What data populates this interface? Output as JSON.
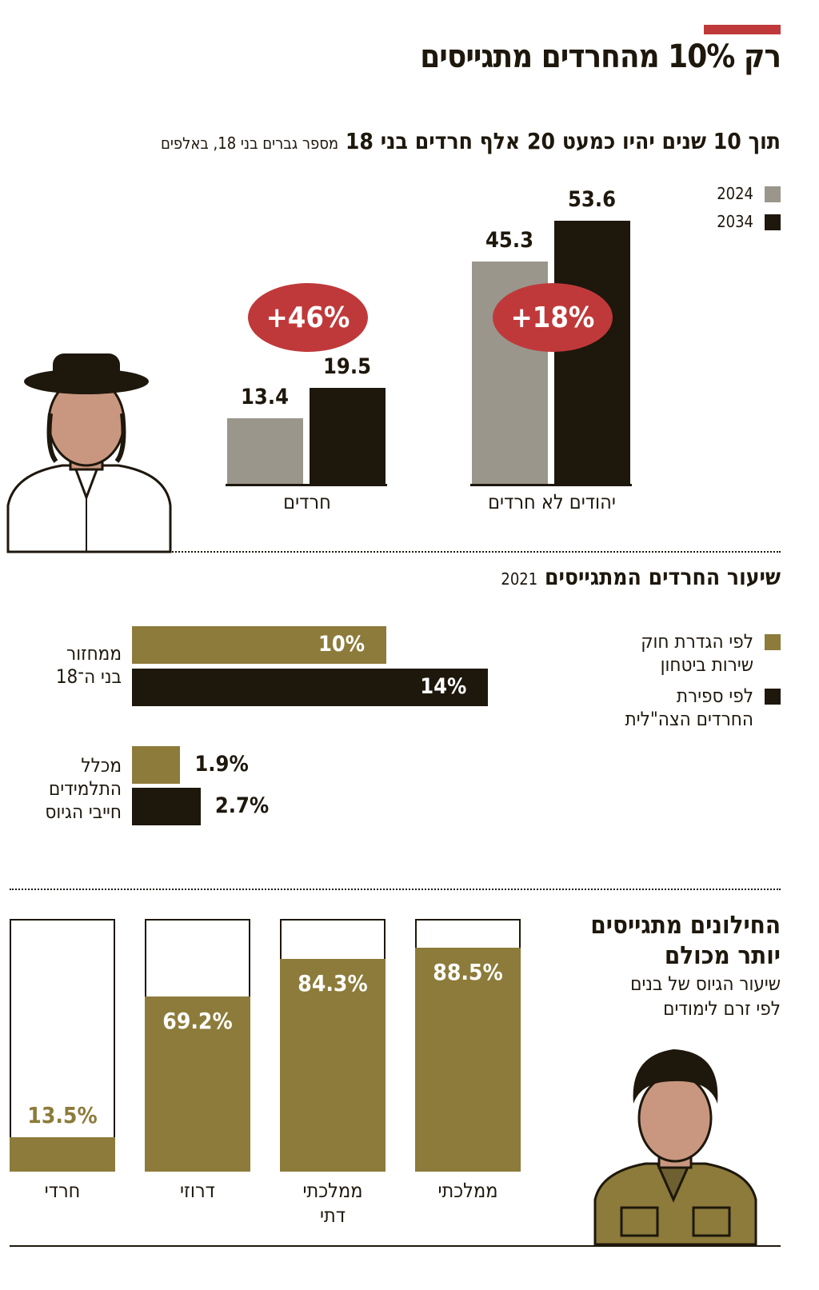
{
  "title": "רק 10% מהחרדים מתגייסים",
  "section1": {
    "headline": "תוך 10 שנים יהיו כמעט 20 אלף חרדים בני 18",
    "note": "מספר גברים בני 18, באלפים"
  },
  "section2": {
    "headline": "שיעור החרדים המתגייסים",
    "year": "2021"
  },
  "section3": {
    "headline_line1": "החילונים מתגייסים",
    "headline_line2": "יותר מכולם",
    "sub_line1": "שיעור הגיוס של בנים",
    "sub_line2": "לפי זרם לימודים"
  },
  "colors": {
    "red": "#c0393a",
    "gray": "#9a968c",
    "black": "#1e170c",
    "olive": "#8c7b3a"
  },
  "chart_data": [
    {
      "type": "bar",
      "categories": [
        "יהודים לא חרדים",
        "חרדים"
      ],
      "series": [
        {
          "name": "2024",
          "color": "#9a968c",
          "values": [
            45.3,
            13.4
          ],
          "labels": [
            "45.3",
            "13.4"
          ]
        },
        {
          "name": "2034",
          "color": "#1e170c",
          "values": [
            53.6,
            19.5
          ],
          "labels": [
            "53.6",
            "19.5"
          ]
        }
      ],
      "annotations": [
        "+18%",
        "+46%"
      ],
      "legend": "top-right"
    },
    {
      "type": "bar",
      "orientation": "horizontal",
      "categories": [
        "ממחזור בני ה־18",
        "מכלל התלמידים חייבי הגיוס"
      ],
      "category_lines": [
        [
          "ממחזור",
          "בני ה־18"
        ],
        [
          "מכלל",
          "התלמידים",
          "חייבי הגיוס"
        ]
      ],
      "series": [
        {
          "name": "לפי הגדרת חוק שירות ביטחון",
          "name_lines": [
            "לפי הגדרת חוק",
            "שירות ביטחון"
          ],
          "color": "#8c7b3a",
          "values": [
            10,
            1.9
          ],
          "labels": [
            "10%",
            "1.9%"
          ]
        },
        {
          "name": "לפי ספירת החרדים הצה\"לית",
          "name_lines": [
            "לפי ספירת",
            "החרדים הצה\"לית"
          ],
          "color": "#1e170c",
          "values": [
            14,
            2.7
          ],
          "labels": [
            "14%",
            "2.7%"
          ]
        }
      ],
      "legend": "right"
    },
    {
      "type": "bar",
      "categories": [
        "ממלכתי",
        "ממלכתי דתי",
        "דרוזי",
        "חרדי"
      ],
      "category_lines": [
        [
          "ממלכתי"
        ],
        [
          "ממלכתי",
          "דתי"
        ],
        [
          "דרוזי"
        ],
        [
          "חרדי"
        ]
      ],
      "values": [
        88.5,
        84.3,
        69.2,
        13.5
      ],
      "labels": [
        "88.5%",
        "84.3%",
        "69.2%",
        "13.5%"
      ],
      "ylim": [
        0,
        100
      ],
      "color": "#8c7b3a"
    }
  ]
}
